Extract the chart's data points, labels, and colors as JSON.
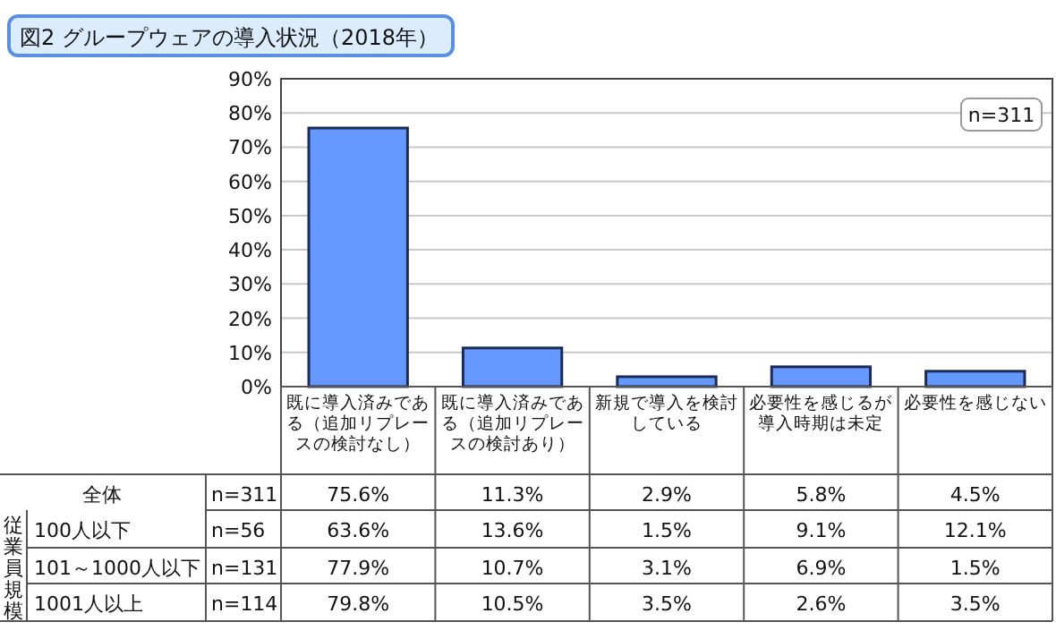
{
  "chart_data": {
    "type": "bar",
    "title": "図2 グループウェアの導入状況（2018年）",
    "categories": [
      "既に導入済みである（追加リプレースの検討なし）",
      "既に導入済みである（追加リプレースの検討あり）",
      "新規で導入を検討している",
      "必要性を感じるが導入時期は未定",
      "必要性を感じない"
    ],
    "series": [
      {
        "name": "全体",
        "color": "#6699ff",
        "values": [
          75.6,
          11.3,
          2.9,
          5.8,
          4.5
        ],
        "value_labels": [
          "75.6%",
          "11.3%",
          "2.9%",
          "5.8%",
          "4.5%"
        ]
      }
    ],
    "ylim": [
      0,
      90
    ],
    "yticks": [
      {
        "value": 0,
        "label": "0%"
      },
      {
        "value": 10,
        "label": "10%"
      },
      {
        "value": 20,
        "label": "20%"
      },
      {
        "value": 30,
        "label": "30%"
      },
      {
        "value": 40,
        "label": "40%"
      },
      {
        "value": 50,
        "label": "50%"
      },
      {
        "value": 60,
        "label": "60%"
      },
      {
        "value": 70,
        "label": "70%"
      },
      {
        "value": 80,
        "label": "80%"
      },
      {
        "value": 90,
        "label": "90%"
      }
    ],
    "grid": "y",
    "annotations": [
      "n=311",
      "n=311",
      "従業員規模",
      "100人以下",
      "n=56",
      "63.6%",
      "13.6%",
      "1.5%",
      "9.1%",
      "12.1%",
      "101～1000人以下",
      "n=131",
      "77.9%",
      "10.7%",
      "3.1%",
      "6.9%",
      "1.5%",
      "1001人以上",
      "n=114",
      "79.8%",
      "10.5%",
      "3.5%",
      "2.6%",
      "3.5%"
    ]
  }
}
